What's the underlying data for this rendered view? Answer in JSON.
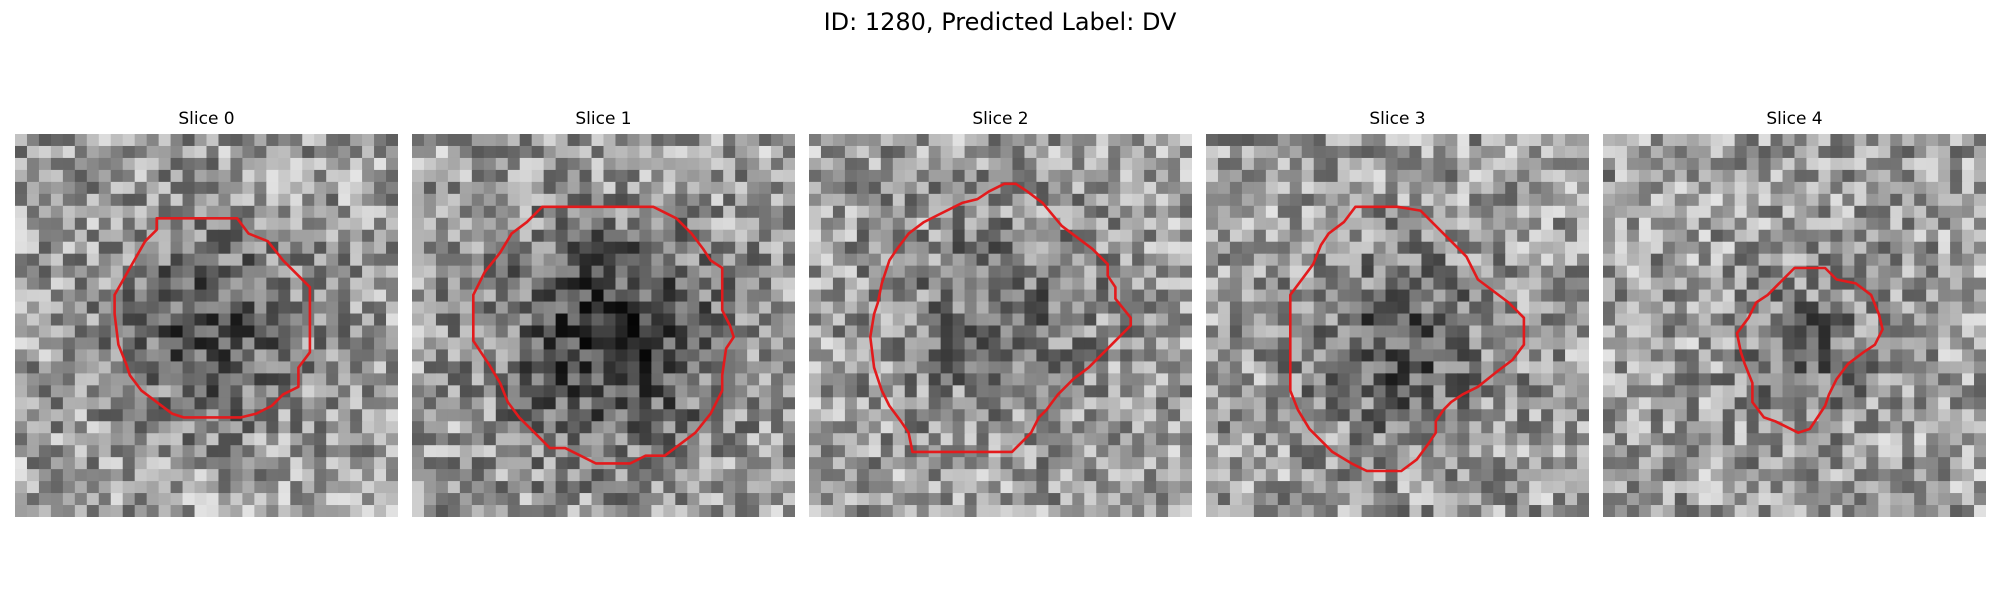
{
  "figure": {
    "title": "ID: 1280, Predicted Label: DV"
  },
  "contour_color": "#e31a1c",
  "slices": [
    {
      "title": "Slice 0",
      "seed": 11,
      "dark": 0.5,
      "spread": 0.3,
      "contour": [
        [
          0.37,
          0.22
        ],
        [
          0.44,
          0.22
        ],
        [
          0.51,
          0.22
        ],
        [
          0.58,
          0.22
        ],
        [
          0.61,
          0.26
        ],
        [
          0.66,
          0.28
        ],
        [
          0.7,
          0.33
        ],
        [
          0.74,
          0.37
        ],
        [
          0.77,
          0.4
        ],
        [
          0.77,
          0.57
        ],
        [
          0.74,
          0.61
        ],
        [
          0.74,
          0.66
        ],
        [
          0.7,
          0.68
        ],
        [
          0.67,
          0.71
        ],
        [
          0.63,
          0.73
        ],
        [
          0.59,
          0.74
        ],
        [
          0.55,
          0.74
        ],
        [
          0.52,
          0.74
        ],
        [
          0.48,
          0.74
        ],
        [
          0.44,
          0.74
        ],
        [
          0.41,
          0.73
        ],
        [
          0.37,
          0.7
        ],
        [
          0.33,
          0.67
        ],
        [
          0.3,
          0.63
        ],
        [
          0.29,
          0.6
        ],
        [
          0.27,
          0.55
        ],
        [
          0.26,
          0.47
        ],
        [
          0.26,
          0.42
        ],
        [
          0.3,
          0.35
        ],
        [
          0.34,
          0.28
        ],
        [
          0.37,
          0.25
        ]
      ]
    },
    {
      "title": "Slice 1",
      "seed": 23,
      "dark": 0.65,
      "spread": 0.36,
      "contour": [
        [
          0.34,
          0.19
        ],
        [
          0.42,
          0.19
        ],
        [
          0.53,
          0.19
        ],
        [
          0.63,
          0.19
        ],
        [
          0.69,
          0.22
        ],
        [
          0.73,
          0.26
        ],
        [
          0.76,
          0.3
        ],
        [
          0.78,
          0.33
        ],
        [
          0.81,
          0.35
        ],
        [
          0.81,
          0.46
        ],
        [
          0.83,
          0.5
        ],
        [
          0.84,
          0.53
        ],
        [
          0.82,
          0.56
        ],
        [
          0.81,
          0.63
        ],
        [
          0.81,
          0.67
        ],
        [
          0.78,
          0.73
        ],
        [
          0.74,
          0.78
        ],
        [
          0.7,
          0.81
        ],
        [
          0.66,
          0.84
        ],
        [
          0.61,
          0.84
        ],
        [
          0.57,
          0.86
        ],
        [
          0.48,
          0.86
        ],
        [
          0.44,
          0.84
        ],
        [
          0.4,
          0.82
        ],
        [
          0.36,
          0.82
        ],
        [
          0.32,
          0.78
        ],
        [
          0.28,
          0.74
        ],
        [
          0.25,
          0.7
        ],
        [
          0.23,
          0.65
        ],
        [
          0.2,
          0.6
        ],
        [
          0.16,
          0.54
        ],
        [
          0.16,
          0.42
        ],
        [
          0.19,
          0.36
        ],
        [
          0.23,
          0.31
        ],
        [
          0.26,
          0.26
        ],
        [
          0.3,
          0.23
        ]
      ]
    },
    {
      "title": "Slice 2",
      "seed": 37,
      "dark": 0.3,
      "spread": 0.34,
      "contour": [
        [
          0.4,
          0.18
        ],
        [
          0.44,
          0.17
        ],
        [
          0.47,
          0.15
        ],
        [
          0.51,
          0.13
        ],
        [
          0.54,
          0.13
        ],
        [
          0.57,
          0.15
        ],
        [
          0.61,
          0.18
        ],
        [
          0.66,
          0.24
        ],
        [
          0.7,
          0.27
        ],
        [
          0.74,
          0.3
        ],
        [
          0.78,
          0.34
        ],
        [
          0.78,
          0.37
        ],
        [
          0.8,
          0.4
        ],
        [
          0.8,
          0.43
        ],
        [
          0.84,
          0.48
        ],
        [
          0.84,
          0.5
        ],
        [
          0.8,
          0.54
        ],
        [
          0.77,
          0.57
        ],
        [
          0.73,
          0.61
        ],
        [
          0.69,
          0.64
        ],
        [
          0.65,
          0.68
        ],
        [
          0.62,
          0.72
        ],
        [
          0.6,
          0.74
        ],
        [
          0.58,
          0.78
        ],
        [
          0.56,
          0.8
        ],
        [
          0.53,
          0.83
        ],
        [
          0.46,
          0.83
        ],
        [
          0.36,
          0.83
        ],
        [
          0.27,
          0.83
        ],
        [
          0.26,
          0.78
        ],
        [
          0.24,
          0.75
        ],
        [
          0.21,
          0.71
        ],
        [
          0.19,
          0.67
        ],
        [
          0.17,
          0.61
        ],
        [
          0.16,
          0.53
        ],
        [
          0.17,
          0.47
        ],
        [
          0.18,
          0.44
        ],
        [
          0.19,
          0.39
        ],
        [
          0.21,
          0.33
        ],
        [
          0.23,
          0.3
        ],
        [
          0.26,
          0.26
        ],
        [
          0.3,
          0.23
        ],
        [
          0.34,
          0.21
        ]
      ]
    },
    {
      "title": "Slice 3",
      "seed": 53,
      "dark": 0.45,
      "spread": 0.3,
      "contour": [
        [
          0.39,
          0.19
        ],
        [
          0.5,
          0.19
        ],
        [
          0.56,
          0.2
        ],
        [
          0.6,
          0.24
        ],
        [
          0.64,
          0.28
        ],
        [
          0.68,
          0.32
        ],
        [
          0.71,
          0.38
        ],
        [
          0.79,
          0.44
        ],
        [
          0.83,
          0.48
        ],
        [
          0.83,
          0.55
        ],
        [
          0.8,
          0.59
        ],
        [
          0.76,
          0.62
        ],
        [
          0.71,
          0.66
        ],
        [
          0.67,
          0.68
        ],
        [
          0.64,
          0.7
        ],
        [
          0.62,
          0.72
        ],
        [
          0.6,
          0.75
        ],
        [
          0.6,
          0.78
        ],
        [
          0.58,
          0.81
        ],
        [
          0.55,
          0.85
        ],
        [
          0.51,
          0.88
        ],
        [
          0.47,
          0.88
        ],
        [
          0.42,
          0.88
        ],
        [
          0.38,
          0.86
        ],
        [
          0.33,
          0.83
        ],
        [
          0.3,
          0.8
        ],
        [
          0.27,
          0.77
        ],
        [
          0.24,
          0.72
        ],
        [
          0.22,
          0.67
        ],
        [
          0.22,
          0.5
        ],
        [
          0.22,
          0.42
        ],
        [
          0.25,
          0.38
        ],
        [
          0.28,
          0.34
        ],
        [
          0.3,
          0.29
        ],
        [
          0.32,
          0.26
        ],
        [
          0.36,
          0.23
        ]
      ]
    },
    {
      "title": "Slice 4",
      "seed": 71,
      "dark": 0.4,
      "spread": 0.2,
      "contour": [
        [
          0.53,
          0.35
        ],
        [
          0.58,
          0.35
        ],
        [
          0.61,
          0.38
        ],
        [
          0.66,
          0.39
        ],
        [
          0.7,
          0.42
        ],
        [
          0.72,
          0.47
        ],
        [
          0.73,
          0.51
        ],
        [
          0.71,
          0.55
        ],
        [
          0.68,
          0.57
        ],
        [
          0.64,
          0.6
        ],
        [
          0.61,
          0.64
        ],
        [
          0.59,
          0.68
        ],
        [
          0.58,
          0.71
        ],
        [
          0.56,
          0.74
        ],
        [
          0.54,
          0.77
        ],
        [
          0.51,
          0.78
        ],
        [
          0.49,
          0.77
        ],
        [
          0.45,
          0.75
        ],
        [
          0.42,
          0.74
        ],
        [
          0.39,
          0.7
        ],
        [
          0.39,
          0.65
        ],
        [
          0.37,
          0.6
        ],
        [
          0.36,
          0.57
        ],
        [
          0.35,
          0.52
        ],
        [
          0.38,
          0.48
        ],
        [
          0.4,
          0.44
        ],
        [
          0.43,
          0.42
        ],
        [
          0.47,
          0.38
        ],
        [
          0.5,
          0.35
        ]
      ]
    }
  ]
}
